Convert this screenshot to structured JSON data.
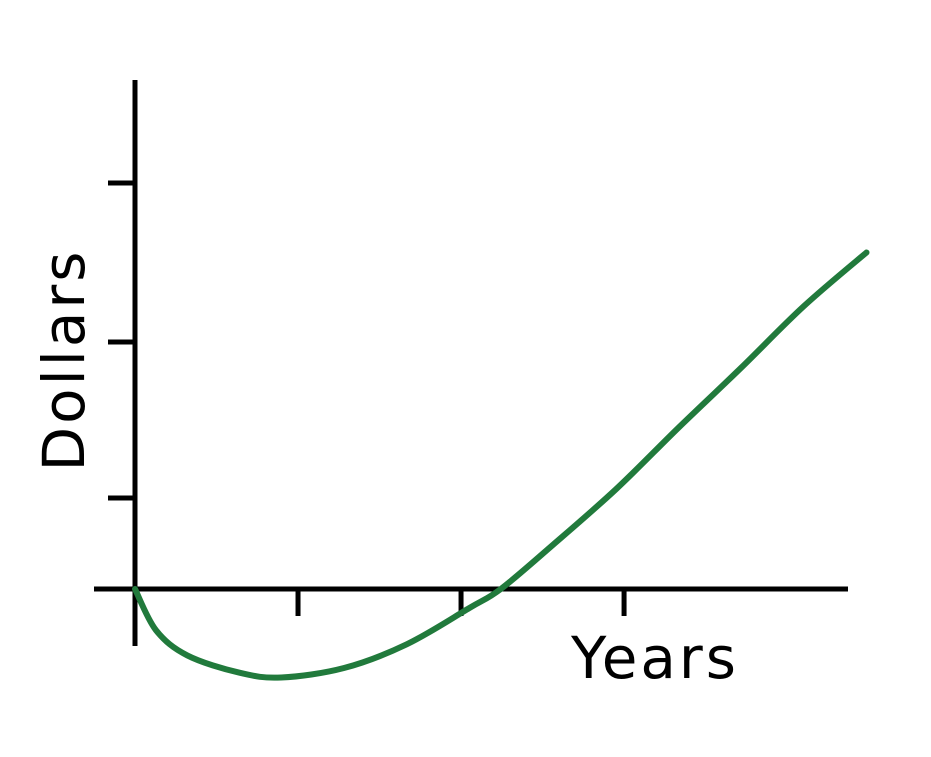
{
  "chart_data": {
    "type": "line",
    "xlabel": "Years",
    "ylabel": "Dollars",
    "x_ticks": 3,
    "y_ticks": 3,
    "xlim": [
      0,
      3.4
    ],
    "ylim": [
      -0.55,
      2.6
    ],
    "grid": false,
    "series": [
      {
        "color": "#217a3c",
        "x": [
          0,
          0.1,
          0.25,
          0.5,
          0.7,
          1.0,
          1.3,
          1.6,
          1.75,
          2.0,
          2.3,
          2.6,
          2.9,
          3.2,
          3.5
        ],
        "y": [
          0,
          -0.26,
          -0.42,
          -0.53,
          -0.56,
          -0.5,
          -0.35,
          -0.12,
          0.0,
          0.28,
          0.63,
          1.02,
          1.4,
          1.79,
          2.13
        ]
      }
    ]
  }
}
